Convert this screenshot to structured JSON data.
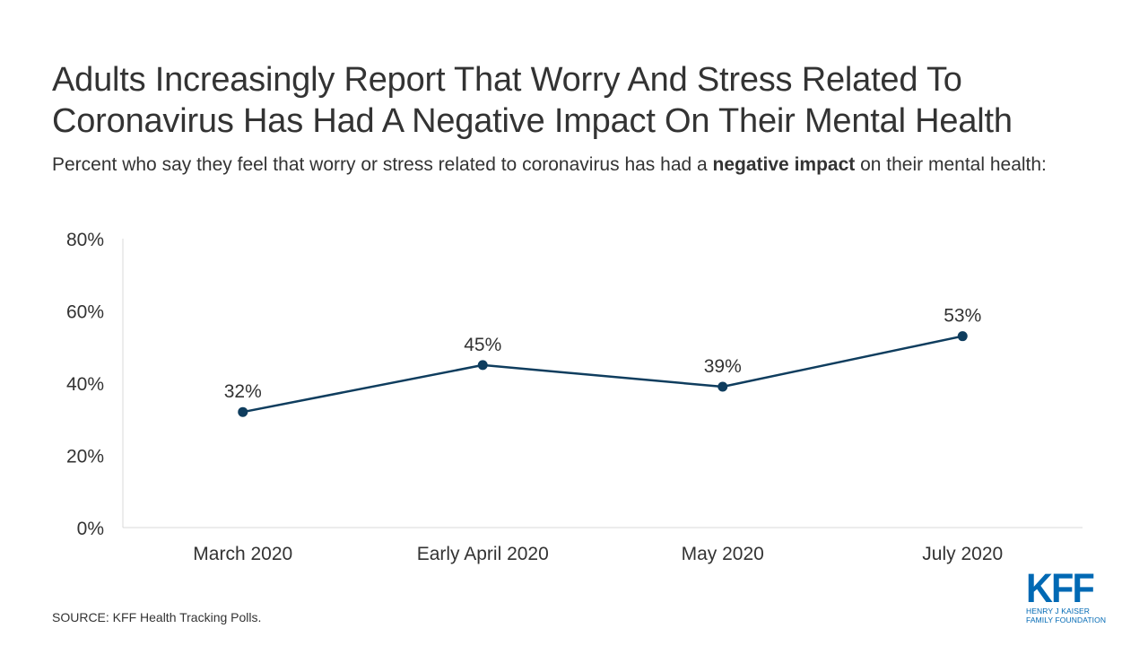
{
  "title": {
    "line1": "Adults Increasingly Report That Worry And Stress Related To",
    "line2": "Coronavirus Has Had A Negative Impact On Their Mental Health"
  },
  "subtitle": {
    "before": "Percent who say they feel that worry or stress related to coronavirus has had a ",
    "bold": "negative impact",
    "after": " on their mental health:"
  },
  "source": "SOURCE: KFF Health Tracking Polls.",
  "logo": {
    "mark": "KFF",
    "line1": "HENRY J KAISER",
    "line2": "FAMILY FOUNDATION"
  },
  "colors": {
    "line": "#0f3d5e",
    "text": "#333333",
    "axis": "#d9d9d9",
    "brand": "#0069b4"
  },
  "chart_data": {
    "type": "line",
    "categories": [
      "March 2020",
      "Early April 2020",
      "May 2020",
      "July 2020"
    ],
    "series": [
      {
        "values": [
          32,
          45,
          39,
          53
        ],
        "labels": [
          "32%",
          "45%",
          "39%",
          "53%"
        ]
      }
    ],
    "ylim": [
      0,
      80
    ],
    "yticks": [
      0,
      20,
      40,
      60,
      80
    ],
    "ytick_labels": [
      "0%",
      "20%",
      "40%",
      "60%",
      "80%"
    ],
    "grid": false,
    "legend": "none"
  }
}
